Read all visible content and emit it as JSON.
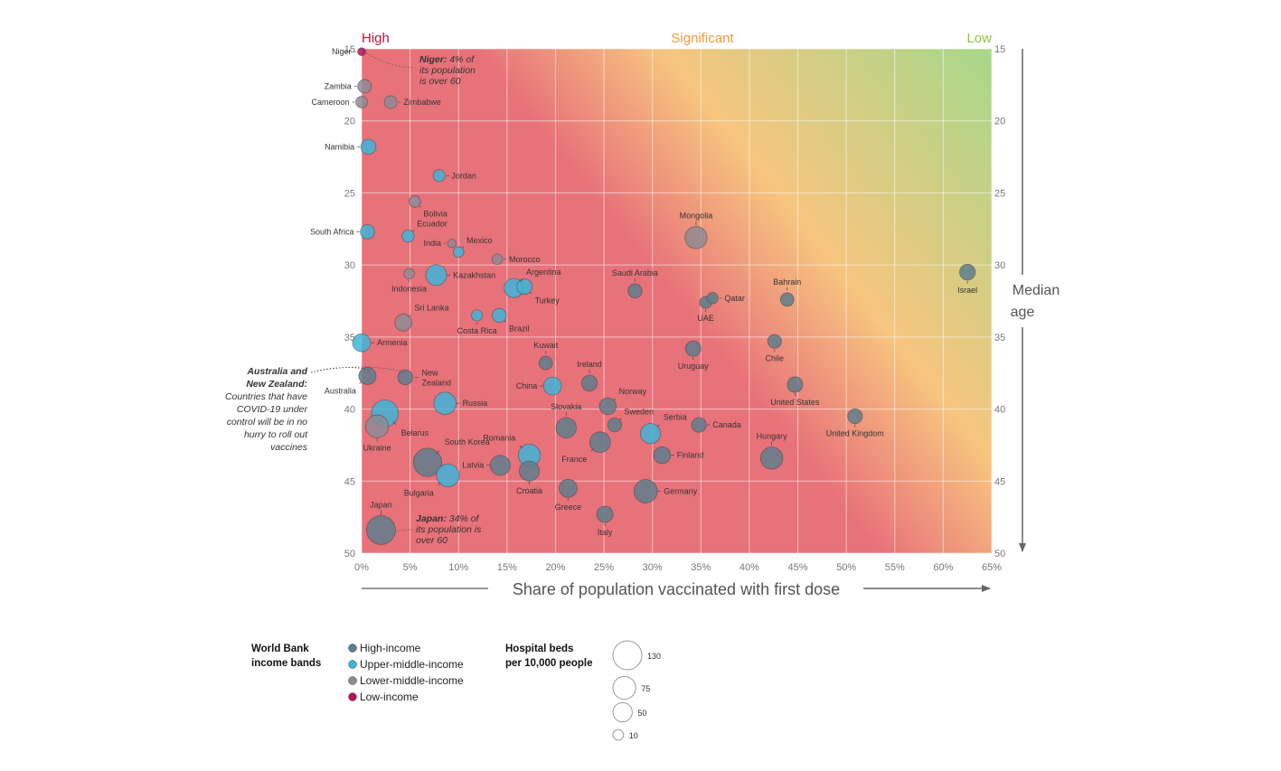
{
  "chart_data": {
    "type": "scatter",
    "xlabel": "Share of population vaccinated with first dose",
    "ylabel": "Median age",
    "xlim": [
      0,
      65
    ],
    "ylim": [
      15,
      50
    ],
    "y_inverted": true,
    "x_ticks": [
      "0%",
      "5%",
      "10%",
      "15%",
      "20%",
      "25%",
      "30%",
      "35%",
      "40%",
      "45%",
      "50%",
      "55%",
      "60%",
      "65%"
    ],
    "y_ticks": [
      "15",
      "20",
      "25",
      "30",
      "35",
      "40",
      "45",
      "50"
    ],
    "risk_labels": {
      "high": "High",
      "significant": "Significant",
      "low": "Low"
    },
    "colors": {
      "High-income": "#5f7d8c",
      "Upper-middle-income": "#3fb4d8",
      "Lower-middle-income": "#8e8a93",
      "Low-income": "#b5135a",
      "risk_high": "#e8727a",
      "risk_mid": "#f7c57f",
      "risk_low": "#a6d88a"
    },
    "legend": {
      "income_title_line1": "World Bank",
      "income_title_line2": "income bands",
      "income_bands": [
        "High-income",
        "Upper-middle-income",
        "Lower-middle-income",
        "Low-income"
      ],
      "beds_title_line1": "Hospital beds",
      "beds_title_line2": "per 10,000 people",
      "beds_sizes": [
        130,
        75,
        50,
        10
      ]
    },
    "annotations": {
      "niger_bold": "Niger:",
      "niger_line1": "4% of",
      "niger_line2": "its population",
      "niger_line3": "is over 60",
      "japan_bold": "Japan:",
      "japan_line1": "34% of",
      "japan_line2": "its population is",
      "japan_line3": "over 60",
      "aus_line1": "Australia and",
      "aus_line2": "New Zealand:",
      "aus_line3": "Countries that have",
      "aus_line4": "COVID-19 under",
      "aus_line5": "control will be in no",
      "aus_line6": "hurry to roll out",
      "aus_line7": "vaccines"
    },
    "points": [
      {
        "name": "Niger",
        "x": 0.0,
        "y": 15.2,
        "beds": 4,
        "income": "Low-income"
      },
      {
        "name": "Zambia",
        "x": 0.3,
        "y": 17.6,
        "beds": 20,
        "income": "Lower-middle-income"
      },
      {
        "name": "Cameroon",
        "x": 0.0,
        "y": 18.7,
        "beds": 13,
        "income": "Lower-middle-income"
      },
      {
        "name": "Zimbabwe",
        "x": 3.0,
        "y": 18.7,
        "beds": 17,
        "income": "Lower-middle-income"
      },
      {
        "name": "Namibia",
        "x": 0.7,
        "y": 21.8,
        "beds": 27,
        "income": "Upper-middle-income"
      },
      {
        "name": "Jordan",
        "x": 8.0,
        "y": 23.8,
        "beds": 14,
        "income": "Upper-middle-income"
      },
      {
        "name": "Bolivia",
        "x": 5.5,
        "y": 25.6,
        "beds": 13,
        "income": "Lower-middle-income"
      },
      {
        "name": "Ecuador",
        "x": 4.8,
        "y": 28.0,
        "beds": 15,
        "income": "Upper-middle-income"
      },
      {
        "name": "South Africa",
        "x": 0.6,
        "y": 27.7,
        "beds": 23,
        "income": "Upper-middle-income"
      },
      {
        "name": "India",
        "x": 9.3,
        "y": 28.5,
        "beds": 5,
        "income": "Lower-middle-income"
      },
      {
        "name": "Mexico",
        "x": 10.0,
        "y": 29.1,
        "beds": 10,
        "income": "Upper-middle-income"
      },
      {
        "name": "Morocco",
        "x": 14.0,
        "y": 29.6,
        "beds": 10,
        "income": "Lower-middle-income"
      },
      {
        "name": "Kazakhstan",
        "x": 7.7,
        "y": 30.7,
        "beds": 61,
        "income": "Upper-middle-income"
      },
      {
        "name": "Indonesia",
        "x": 4.9,
        "y": 30.6,
        "beds": 10,
        "income": "Lower-middle-income"
      },
      {
        "name": "Argentina",
        "x": 15.7,
        "y": 31.6,
        "beds": 50,
        "income": "Upper-middle-income"
      },
      {
        "name": "Turkey",
        "x": 16.8,
        "y": 31.5,
        "beds": 28,
        "income": "Upper-middle-income"
      },
      {
        "name": "Saudi Arabia",
        "x": 28.2,
        "y": 31.8,
        "beds": 22,
        "income": "High-income"
      },
      {
        "name": "Mongolia",
        "x": 34.5,
        "y": 28.1,
        "beds": 70,
        "income": "Lower-middle-income"
      },
      {
        "name": "Bahrain",
        "x": 43.9,
        "y": 32.4,
        "beds": 20,
        "income": "High-income"
      },
      {
        "name": "Israel",
        "x": 62.5,
        "y": 30.5,
        "beds": 30,
        "income": "High-income"
      },
      {
        "name": "Qatar",
        "x": 36.2,
        "y": 32.3,
        "beds": 12,
        "income": "High-income"
      },
      {
        "name": "UAE",
        "x": 35.5,
        "y": 32.6,
        "beds": 14,
        "income": "High-income"
      },
      {
        "name": "Sri Lanka",
        "x": 4.3,
        "y": 34.0,
        "beds": 36,
        "income": "Lower-middle-income"
      },
      {
        "name": "Costa Rica",
        "x": 11.9,
        "y": 33.5,
        "beds": 11,
        "income": "Upper-middle-income"
      },
      {
        "name": "Brazil",
        "x": 14.2,
        "y": 33.5,
        "beds": 22,
        "income": "Upper-middle-income"
      },
      {
        "name": "Armenia",
        "x": 0.0,
        "y": 35.4,
        "beds": 42,
        "income": "Upper-middle-income"
      },
      {
        "name": "Kuwait",
        "x": 19.0,
        "y": 36.8,
        "beds": 20,
        "income": "High-income"
      },
      {
        "name": "Uruguay",
        "x": 34.2,
        "y": 35.8,
        "beds": 28,
        "income": "High-income"
      },
      {
        "name": "Chile",
        "x": 42.6,
        "y": 35.3,
        "beds": 21,
        "income": "High-income"
      },
      {
        "name": "Australia",
        "x": 0.6,
        "y": 37.7,
        "beds": 38,
        "income": "High-income"
      },
      {
        "name": "New Zealand",
        "x": 4.5,
        "y": 37.8,
        "beds": 26,
        "income": "High-income"
      },
      {
        "name": "China",
        "x": 19.7,
        "y": 38.4,
        "beds": 42,
        "income": "Upper-middle-income"
      },
      {
        "name": "Ireland",
        "x": 23.5,
        "y": 38.2,
        "beds": 30,
        "income": "High-income"
      },
      {
        "name": "United States",
        "x": 44.7,
        "y": 38.3,
        "beds": 29,
        "income": "High-income"
      },
      {
        "name": "Russia",
        "x": 8.6,
        "y": 39.6,
        "beds": 71,
        "income": "Upper-middle-income"
      },
      {
        "name": "Norway",
        "x": 25.4,
        "y": 39.8,
        "beds": 35,
        "income": "High-income"
      },
      {
        "name": "Belarus",
        "x": 2.4,
        "y": 40.3,
        "beds": 110,
        "income": "Upper-middle-income"
      },
      {
        "name": "Ukraine",
        "x": 1.6,
        "y": 41.2,
        "beds": 75,
        "income": "Lower-middle-income"
      },
      {
        "name": "Slovakia",
        "x": 21.1,
        "y": 41.3,
        "beds": 57,
        "income": "High-income"
      },
      {
        "name": "Sweden",
        "x": 26.1,
        "y": 41.1,
        "beds": 21,
        "income": "High-income"
      },
      {
        "name": "Serbia",
        "x": 29.8,
        "y": 41.7,
        "beds": 56,
        "income": "Upper-middle-income"
      },
      {
        "name": "Canada",
        "x": 34.8,
        "y": 41.1,
        "beds": 25,
        "income": "High-income"
      },
      {
        "name": "United Kingdom",
        "x": 50.9,
        "y": 40.5,
        "beds": 25,
        "income": "High-income"
      },
      {
        "name": "France",
        "x": 24.6,
        "y": 42.3,
        "beds": 60,
        "income": "High-income"
      },
      {
        "name": "Romania",
        "x": 17.3,
        "y": 43.2,
        "beds": 69,
        "income": "Upper-middle-income"
      },
      {
        "name": "Finland",
        "x": 31.0,
        "y": 43.2,
        "beds": 36,
        "income": "High-income"
      },
      {
        "name": "Hungary",
        "x": 42.3,
        "y": 43.4,
        "beds": 70,
        "income": "High-income"
      },
      {
        "name": "South Korea",
        "x": 6.8,
        "y": 43.7,
        "beds": 124,
        "income": "High-income"
      },
      {
        "name": "Latvia",
        "x": 14.3,
        "y": 43.9,
        "beds": 55,
        "income": "High-income"
      },
      {
        "name": "Bulgaria",
        "x": 8.9,
        "y": 44.6,
        "beds": 75,
        "income": "Upper-middle-income"
      },
      {
        "name": "Croatia",
        "x": 17.3,
        "y": 44.3,
        "beds": 55,
        "income": "High-income"
      },
      {
        "name": "Greece",
        "x": 21.3,
        "y": 45.5,
        "beds": 42,
        "income": "High-income"
      },
      {
        "name": "Germany",
        "x": 29.3,
        "y": 45.7,
        "beds": 80,
        "income": "High-income"
      },
      {
        "name": "Italy",
        "x": 25.1,
        "y": 47.3,
        "beds": 32,
        "income": "High-income"
      },
      {
        "name": "Japan",
        "x": 2.0,
        "y": 48.4,
        "beds": 130,
        "income": "High-income"
      }
    ]
  }
}
